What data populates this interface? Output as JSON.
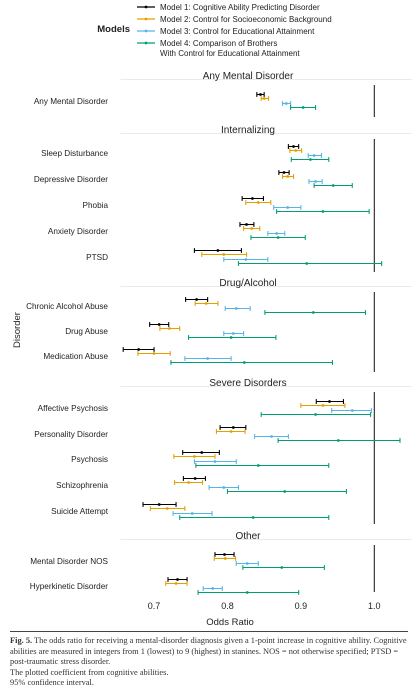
{
  "chart_data": {
    "type": "forest",
    "legend_title": "Models",
    "legend": [
      {
        "name": "Model 1: Cognitive Ability Predicting Disorder",
        "color": "#000000"
      },
      {
        "name": "Model 2: Control for Socioeconomic Background",
        "color": "#E69F00"
      },
      {
        "name": "Model 3: Control for Educational Attainment",
        "color": "#56B4E9"
      },
      {
        "name": "Model 4: Comparison of Brothers\nWith Control for Educational Attainment",
        "color": "#009E73"
      }
    ],
    "xlabel": "Odds Ratio",
    "ylabel": "Disorder",
    "xlim": [
      0.655,
      1.05
    ],
    "xticks": [
      "0.7",
      "0.8",
      "0.9",
      "1.0"
    ],
    "reference_line": 1.0,
    "groups": [
      {
        "title": "Any Mental Disorder",
        "items": [
          {
            "label": "Any Mental Disorder",
            "models": [
              [
                0.845,
                0.84,
                0.85
              ],
              [
                0.85,
                0.846,
                0.856
              ],
              [
                0.88,
                0.875,
                0.886
              ],
              [
                0.903,
                0.886,
                0.92
              ]
            ]
          }
        ]
      },
      {
        "title": "Internalizing",
        "items": [
          {
            "label": "Sleep Disturbance",
            "models": [
              [
                0.89,
                0.883,
                0.897
              ],
              [
                0.893,
                0.885,
                0.901
              ],
              [
                0.918,
                0.91,
                0.928
              ],
              [
                0.913,
                0.887,
                0.938
              ]
            ]
          },
          {
            "label": "Depressive Disorder",
            "models": [
              [
                0.877,
                0.87,
                0.884
              ],
              [
                0.882,
                0.875,
                0.89
              ],
              [
                0.92,
                0.911,
                0.929
              ],
              [
                0.944,
                0.918,
                0.97
              ]
            ]
          },
          {
            "label": "Phobia",
            "models": [
              [
                0.834,
                0.82,
                0.849
              ],
              [
                0.842,
                0.825,
                0.859
              ],
              [
                0.882,
                0.863,
                0.9
              ],
              [
                0.93,
                0.867,
                0.993
              ]
            ]
          },
          {
            "label": "Anxiety Disorder",
            "models": [
              [
                0.826,
                0.817,
                0.836
              ],
              [
                0.833,
                0.822,
                0.844
              ],
              [
                0.867,
                0.855,
                0.878
              ],
              [
                0.869,
                0.832,
                0.906
              ]
            ]
          },
          {
            "label": "PTSD",
            "models": [
              [
                0.787,
                0.755,
                0.819
              ],
              [
                0.795,
                0.765,
                0.826
              ],
              [
                0.825,
                0.795,
                0.855
              ],
              [
                0.908,
                0.815,
                1.01
              ]
            ]
          }
        ]
      },
      {
        "title": "Drug/Alcohol",
        "items": [
          {
            "label": "Chronic Alcohol Abuse",
            "models": [
              [
                0.758,
                0.743,
                0.773
              ],
              [
                0.771,
                0.756,
                0.787
              ],
              [
                0.812,
                0.797,
                0.831
              ],
              [
                0.917,
                0.851,
                0.988
              ]
            ]
          },
          {
            "label": "Drug Abuse",
            "models": [
              [
                0.707,
                0.694,
                0.72
              ],
              [
                0.721,
                0.708,
                0.735
              ],
              [
                0.808,
                0.795,
                0.822
              ],
              [
                0.805,
                0.747,
                0.866
              ]
            ]
          },
          {
            "label": "Medication Abuse",
            "models": [
              [
                0.679,
                0.658,
                0.7
              ],
              [
                0.7,
                0.678,
                0.722
              ],
              [
                0.773,
                0.742,
                0.805
              ],
              [
                0.823,
                0.723,
                0.943
              ]
            ]
          }
        ]
      },
      {
        "title": "Severe Disorders",
        "items": [
          {
            "label": "Affective Psychosis",
            "models": [
              [
                0.939,
                0.921,
                0.958
              ],
              [
                0.93,
                0.9,
                0.96
              ],
              [
                0.97,
                0.942,
                0.996
              ],
              [
                0.92,
                0.846,
                0.995
              ]
            ]
          },
          {
            "label": "Personality Disorder",
            "models": [
              [
                0.808,
                0.79,
                0.825
              ],
              [
                0.805,
                0.785,
                0.824
              ],
              [
                0.86,
                0.837,
                0.883
              ],
              [
                0.951,
                0.869,
                1.035
              ]
            ]
          },
          {
            "label": "Psychosis",
            "models": [
              [
                0.765,
                0.739,
                0.789
              ],
              [
                0.755,
                0.727,
                0.783
              ],
              [
                0.783,
                0.755,
                0.812
              ],
              [
                0.842,
                0.757,
                0.938
              ]
            ]
          },
          {
            "label": "Schizophrenia",
            "models": [
              [
                0.756,
                0.74,
                0.77
              ],
              [
                0.747,
                0.728,
                0.766
              ],
              [
                0.795,
                0.775,
                0.815
              ],
              [
                0.878,
                0.8,
                0.962
              ]
            ]
          },
          {
            "label": "Suicide Attempt",
            "models": [
              [
                0.707,
                0.685,
                0.73
              ],
              [
                0.718,
                0.695,
                0.742
              ],
              [
                0.752,
                0.726,
                0.779
              ],
              [
                0.835,
                0.735,
                0.938
              ]
            ]
          }
        ]
      },
      {
        "title": "Other",
        "items": [
          {
            "label": "Mental Disorder NOS",
            "models": [
              [
                0.796,
                0.783,
                0.809
              ],
              [
                0.797,
                0.782,
                0.811
              ],
              [
                0.827,
                0.812,
                0.842
              ],
              [
                0.874,
                0.821,
                0.932
              ]
            ]
          },
          {
            "label": "Hyperkinetic Disorder",
            "models": [
              [
                0.732,
                0.719,
                0.745
              ],
              [
                0.73,
                0.716,
                0.745
              ],
              [
                0.78,
                0.767,
                0.793
              ],
              [
                0.827,
                0.76,
                0.897
              ]
            ]
          }
        ]
      }
    ]
  },
  "caption": {
    "fig_label": "Fig. 5.",
    "line1": " The odds ratio for receiving a mental-disorder diagnosis given a 1-point increase in cognitive ability. Cognitive abilities are measured in integers from 1 (lowest) to 9 (highest) in stanines. NOS = not otherwise specified; PTSD = post-traumatic stress disorder.",
    "line2": "The plotted coefficient from cognitive abilities.",
    "line3": "95% confidence interval."
  }
}
